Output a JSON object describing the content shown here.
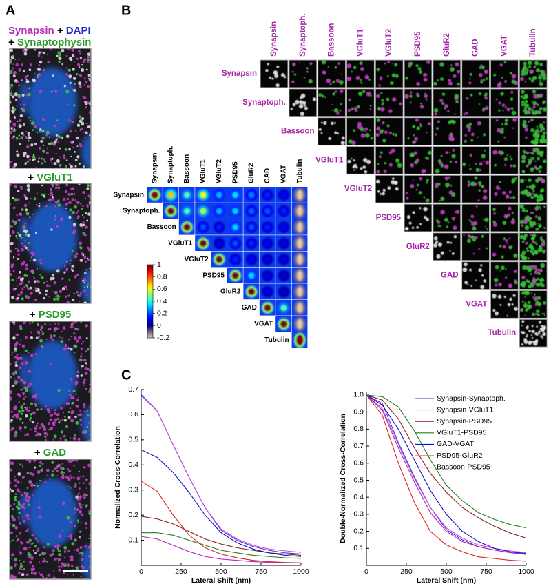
{
  "figure": {
    "panel_labels": [
      "A",
      "B",
      "C"
    ],
    "panel_a": {
      "captions": [
        [
          {
            "text": "Synapsin",
            "color": "#b52bb5"
          },
          {
            "text": "+",
            "color": "#000000"
          },
          {
            "text": "DAPI",
            "color": "#2323d2"
          }
        ],
        [
          {
            "text": "+",
            "color": "#000000"
          },
          {
            "text": "Synaptophysin",
            "color": "#2c9a2c"
          }
        ],
        [
          {
            "text": "+",
            "color": "#000000"
          },
          {
            "text": "VGluT1",
            "color": "#2c9a2c"
          }
        ],
        [
          {
            "text": "+",
            "color": "#000000"
          },
          {
            "text": "PSD95",
            "color": "#2c9a2c"
          }
        ],
        [
          {
            "text": "+",
            "color": "#000000"
          },
          {
            "text": "GAD",
            "color": "#2c9a2c"
          }
        ]
      ]
    },
    "panel_b_grid": {
      "labels": [
        "Synapsin",
        "Synaptoph.",
        "Bassoon",
        "VGluT1",
        "VGluT2",
        "PSD95",
        "GluR2",
        "GAD",
        "VGAT",
        "Tubulin"
      ],
      "color": "#a326a8"
    }
  },
  "chart_data": [
    {
      "type": "heatmap",
      "categories": [
        "Synapsin",
        "Synaptoph.",
        "Bassoon",
        "VGluT1",
        "VGluT2",
        "PSD95",
        "GluR2",
        "GAD",
        "VGAT",
        "Tubulin"
      ],
      "values": [
        [
          1,
          0.68,
          0.45,
          0.62,
          0.3,
          0.34,
          0.25,
          0.15,
          0.12,
          -0.2
        ],
        [
          null,
          1,
          0.45,
          0.55,
          0.3,
          0.33,
          0.22,
          0.2,
          0.15,
          -0.2
        ],
        [
          null,
          null,
          1,
          0.2,
          0.15,
          0.33,
          0.2,
          0.15,
          0.12,
          -0.2
        ],
        [
          null,
          null,
          null,
          1,
          0.1,
          0.2,
          0.15,
          0.12,
          0.1,
          -0.2
        ],
        [
          null,
          null,
          null,
          null,
          1,
          0.15,
          0.12,
          0.1,
          0.1,
          -0.2
        ],
        [
          null,
          null,
          null,
          null,
          null,
          1,
          0.34,
          0.1,
          0.08,
          -0.2
        ],
        [
          null,
          null,
          null,
          null,
          null,
          null,
          1,
          0.1,
          0.08,
          -0.2
        ],
        [
          null,
          null,
          null,
          null,
          null,
          null,
          null,
          1,
          0.46,
          -0.2
        ],
        [
          null,
          null,
          null,
          null,
          null,
          null,
          null,
          null,
          1,
          -0.2
        ],
        [
          null,
          null,
          null,
          null,
          null,
          null,
          null,
          null,
          null,
          1
        ]
      ],
      "clim": [
        -0.2,
        1
      ],
      "colorbar_ticks": [
        1,
        0.8,
        0.6,
        0.4,
        0.2,
        0,
        -0.2
      ]
    },
    {
      "type": "line",
      "ylabel": "Normalized Cross-Correlation",
      "xlabel": "Lateral Shift (nm)",
      "x": [
        0,
        100,
        200,
        300,
        400,
        500,
        600,
        700,
        800,
        900,
        1000
      ],
      "xlim": [
        0,
        1000
      ],
      "xticks": [
        0,
        250,
        500,
        750,
        1000
      ],
      "ylim": [
        0,
        0.7
      ],
      "yticks": [
        0.1,
        0.2,
        0.3,
        0.4,
        0.5,
        0.6,
        0.7
      ],
      "legend": false,
      "series": [
        {
          "color": "#3a3ad8",
          "values": [
            0.68,
            0.615,
            0.48,
            0.35,
            0.23,
            0.14,
            0.1,
            0.075,
            0.06,
            0.05,
            0.045
          ]
        },
        {
          "color": "#d04ad8",
          "values": [
            0.675,
            0.615,
            0.48,
            0.35,
            0.23,
            0.145,
            0.105,
            0.08,
            0.065,
            0.058,
            0.052
          ]
        },
        {
          "color": "#8b1a1a",
          "values": [
            0.195,
            0.185,
            0.165,
            0.135,
            0.105,
            0.085,
            0.07,
            0.06,
            0.05,
            0.045,
            0.04
          ]
        },
        {
          "color": "#1f7f1f",
          "values": [
            0.13,
            0.13,
            0.12,
            0.1,
            0.08,
            0.06,
            0.05,
            0.04,
            0.035,
            0.03,
            0.028
          ]
        },
        {
          "color": "#1010c8",
          "values": [
            0.46,
            0.43,
            0.37,
            0.29,
            0.2,
            0.13,
            0.09,
            0.065,
            0.05,
            0.04,
            0.035
          ]
        },
        {
          "color": "#e02020",
          "values": [
            0.335,
            0.295,
            0.2,
            0.12,
            0.07,
            0.045,
            0.03,
            0.02,
            0.015,
            0.012,
            0.01
          ]
        },
        {
          "color": "#b020c0",
          "values": [
            0.115,
            0.105,
            0.08,
            0.055,
            0.035,
            0.025,
            0.02,
            0.015,
            0.012,
            0.01,
            0.01
          ]
        }
      ]
    },
    {
      "type": "line",
      "ylabel": "Double-Normalized Cross-Correlation",
      "xlabel": "Lateral Shift (nm)",
      "x": [
        0,
        100,
        200,
        300,
        400,
        500,
        600,
        700,
        800,
        900,
        1000
      ],
      "xlim": [
        0,
        1000
      ],
      "xticks": [
        0,
        250,
        500,
        750,
        1000
      ],
      "ylim": [
        0,
        1.02
      ],
      "yticks": [
        0.1,
        0.2,
        0.3,
        0.4,
        0.5,
        0.6,
        0.7,
        0.8,
        0.9,
        {
          "value": 1,
          "label": "1.0"
        }
      ],
      "legend": "upper right",
      "series": [
        {
          "name": "Synapsin-Synaptoph.",
          "color": "#3a3ad8",
          "values": [
            1,
            0.95,
            0.72,
            0.52,
            0.34,
            0.21,
            0.15,
            0.11,
            0.09,
            0.075,
            0.065
          ]
        },
        {
          "name": "Synapsin-VGluT1",
          "color": "#d04ad8",
          "values": [
            1,
            0.92,
            0.71,
            0.51,
            0.34,
            0.22,
            0.16,
            0.12,
            0.1,
            0.085,
            0.075
          ]
        },
        {
          "name": "Synapsin-PSD95",
          "color": "#8b1a1a",
          "values": [
            1,
            0.97,
            0.86,
            0.69,
            0.54,
            0.43,
            0.34,
            0.28,
            0.23,
            0.19,
            0.16
          ]
        },
        {
          "name": "VGluT1-PSD95",
          "color": "#1f7f1f",
          "values": [
            1,
            0.99,
            0.93,
            0.79,
            0.62,
            0.47,
            0.38,
            0.31,
            0.27,
            0.24,
            0.22
          ]
        },
        {
          "name": "GAD-VGAT",
          "color": "#1010c8",
          "values": [
            1,
            0.94,
            0.8,
            0.62,
            0.44,
            0.3,
            0.2,
            0.14,
            0.1,
            0.08,
            0.07
          ]
        },
        {
          "name": "PSD95-GluR2",
          "color": "#e02020",
          "values": [
            1,
            0.88,
            0.6,
            0.37,
            0.2,
            0.12,
            0.08,
            0.05,
            0.04,
            0.03,
            0.025
          ]
        },
        {
          "name": "Bassoon-PSD95",
          "color": "#b020c0",
          "values": [
            1,
            0.91,
            0.69,
            0.49,
            0.31,
            0.2,
            0.14,
            0.11,
            0.09,
            0.075,
            0.065
          ]
        }
      ]
    }
  ]
}
